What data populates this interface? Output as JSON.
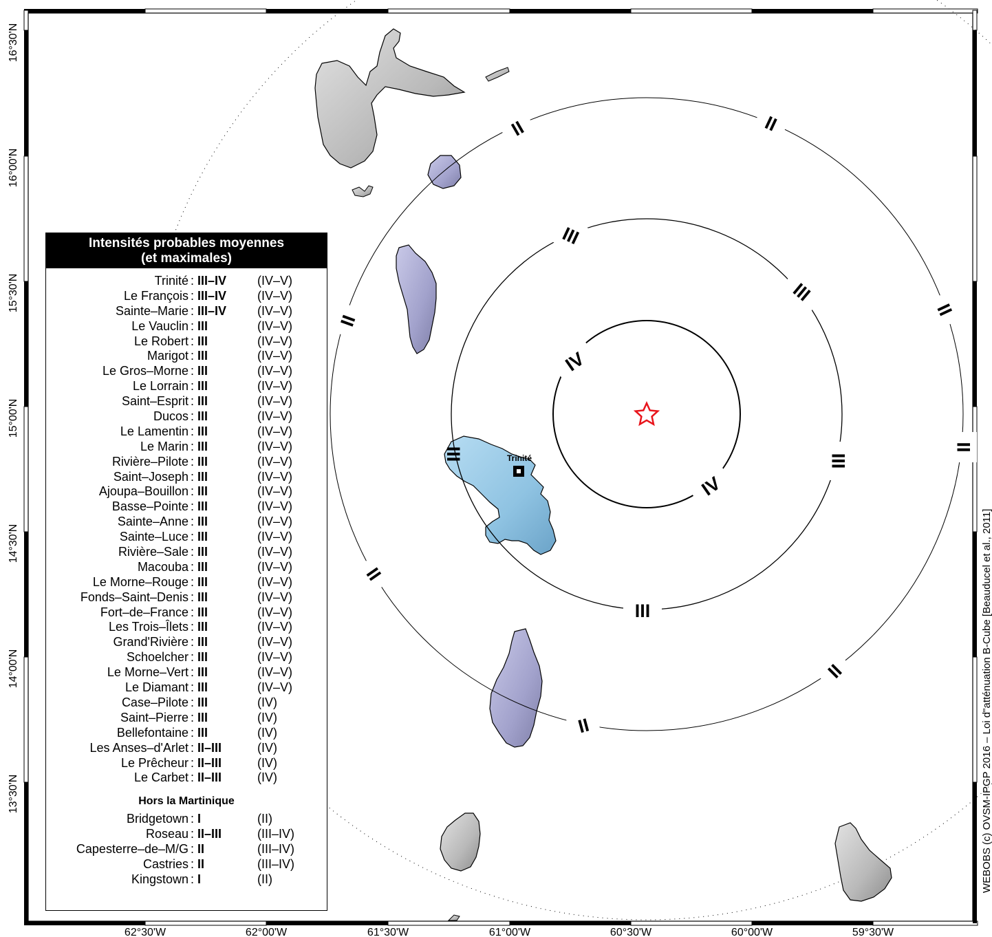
{
  "map": {
    "lat_ticks": [
      "16°30'N",
      "16°00'N",
      "15°30'N",
      "15°00'N",
      "14°30'N",
      "14°00'N",
      "13°30'N"
    ],
    "lon_ticks": [
      "62°30'W",
      "62°00'W",
      "61°30'W",
      "61°00'W",
      "60°30'W",
      "60°00'W",
      "59°30'W"
    ],
    "epicenter_symbol": "star",
    "epicenter_color": "#e8141b",
    "city_label": "Trinité",
    "ring_labels": {
      "iv": [
        "IV",
        "IV"
      ],
      "iii": [
        "III",
        "III",
        "III",
        "III",
        "III"
      ],
      "ii": [
        "II",
        "II",
        "II",
        "II",
        "II",
        "II",
        "II",
        "II"
      ]
    },
    "credit": "WEBOBS (c) OVSM-IPGP 2016 – Loi d\"atténuation B-Cube [Beauducel et al., 2011]"
  },
  "legend": {
    "title_line1": "Intensités probables moyennes",
    "title_line2": "(et maximales)",
    "martinique": [
      {
        "name": "Trinité",
        "mean": "III–IV",
        "max": "(IV–V)"
      },
      {
        "name": "Le François",
        "mean": "III–IV",
        "max": "(IV–V)"
      },
      {
        "name": "Sainte–Marie",
        "mean": "III–IV",
        "max": "(IV–V)"
      },
      {
        "name": "Le Vauclin",
        "mean": "III",
        "max": "(IV–V)"
      },
      {
        "name": "Le Robert",
        "mean": "III",
        "max": "(IV–V)"
      },
      {
        "name": "Marigot",
        "mean": "III",
        "max": "(IV–V)"
      },
      {
        "name": "Le Gros–Morne",
        "mean": "III",
        "max": "(IV–V)"
      },
      {
        "name": "Le Lorrain",
        "mean": "III",
        "max": "(IV–V)"
      },
      {
        "name": "Saint–Esprit",
        "mean": "III",
        "max": "(IV–V)"
      },
      {
        "name": "Ducos",
        "mean": "III",
        "max": "(IV–V)"
      },
      {
        "name": "Le Lamentin",
        "mean": "III",
        "max": "(IV–V)"
      },
      {
        "name": "Le Marin",
        "mean": "III",
        "max": "(IV–V)"
      },
      {
        "name": "Rivière–Pilote",
        "mean": "III",
        "max": "(IV–V)"
      },
      {
        "name": "Saint–Joseph",
        "mean": "III",
        "max": "(IV–V)"
      },
      {
        "name": "Ajoupa–Bouillon",
        "mean": "III",
        "max": "(IV–V)"
      },
      {
        "name": "Basse–Pointe",
        "mean": "III",
        "max": "(IV–V)"
      },
      {
        "name": "Sainte–Anne",
        "mean": "III",
        "max": "(IV–V)"
      },
      {
        "name": "Sainte–Luce",
        "mean": "III",
        "max": "(IV–V)"
      },
      {
        "name": "Rivière–Sale",
        "mean": "III",
        "max": "(IV–V)"
      },
      {
        "name": "Macouba",
        "mean": "III",
        "max": "(IV–V)"
      },
      {
        "name": "Le Morne–Rouge",
        "mean": "III",
        "max": "(IV–V)"
      },
      {
        "name": "Fonds–Saint–Denis",
        "mean": "III",
        "max": "(IV–V)"
      },
      {
        "name": "Fort–de–France",
        "mean": "III",
        "max": "(IV–V)"
      },
      {
        "name": "Les Trois–Îlets",
        "mean": "III",
        "max": "(IV–V)"
      },
      {
        "name": "Grand'Rivière",
        "mean": "III",
        "max": "(IV–V)"
      },
      {
        "name": "Schoelcher",
        "mean": "III",
        "max": "(IV–V)"
      },
      {
        "name": "Le Morne–Vert",
        "mean": "III",
        "max": "(IV–V)"
      },
      {
        "name": "Le Diamant",
        "mean": "III",
        "max": "(IV–V)"
      },
      {
        "name": "Case–Pilote",
        "mean": "III",
        "max": "(IV)"
      },
      {
        "name": "Saint–Pierre",
        "mean": "III",
        "max": "(IV)"
      },
      {
        "name": "Bellefontaine",
        "mean": "III",
        "max": "(IV)"
      },
      {
        "name": "Les Anses–d'Arlet",
        "mean": "II–III",
        "max": "(IV)"
      },
      {
        "name": "Le Prêcheur",
        "mean": "II–III",
        "max": "(IV)"
      },
      {
        "name": "Le Carbet",
        "mean": "II–III",
        "max": "(IV)"
      }
    ],
    "outside_title": "Hors la Martinique",
    "outside": [
      {
        "name": "Bridgetown",
        "mean": "I",
        "max": "(II)"
      },
      {
        "name": "Roseau",
        "mean": "II–III",
        "max": "(III–IV)"
      },
      {
        "name": "Capesterre–de–M/G",
        "mean": "II",
        "max": "(III–IV)"
      },
      {
        "name": "Castries",
        "mean": "II",
        "max": "(III–IV)"
      },
      {
        "name": "Kingstown",
        "mean": "I",
        "max": "(II)"
      }
    ]
  }
}
